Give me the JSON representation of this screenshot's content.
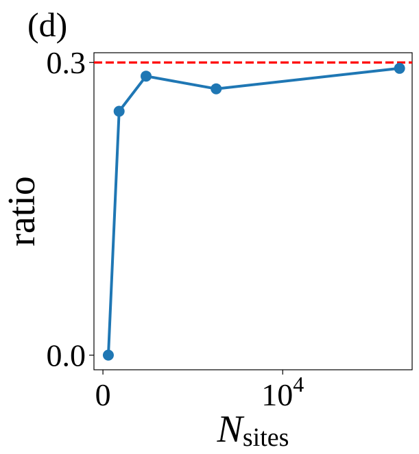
{
  "panel_label": "(d)",
  "chart_data": {
    "type": "line",
    "title": "",
    "xlabel": {
      "main": "N",
      "subscript": "sites"
    },
    "ylabel": "ratio",
    "x_ticks": [
      {
        "value": 0,
        "label": "0",
        "sup": ""
      },
      {
        "value": 10000,
        "label": "10",
        "sup": "4"
      }
    ],
    "y_ticks": [
      {
        "value": 0.0,
        "label": "0.0"
      },
      {
        "value": 0.3,
        "label": "0.3"
      }
    ],
    "xlim": [
      -500,
      17200
    ],
    "ylim": [
      -0.015,
      0.31
    ],
    "series": [
      {
        "color": "#1f77b4",
        "x": [
          300,
          900,
          2400,
          6300,
          16500
        ],
        "y": [
          0.0,
          0.25,
          0.286,
          0.273,
          0.294
        ]
      }
    ],
    "reference_line": {
      "y": 0.3,
      "color": "#ff0000",
      "style": "dashed"
    },
    "grid": false,
    "legend": "none"
  }
}
